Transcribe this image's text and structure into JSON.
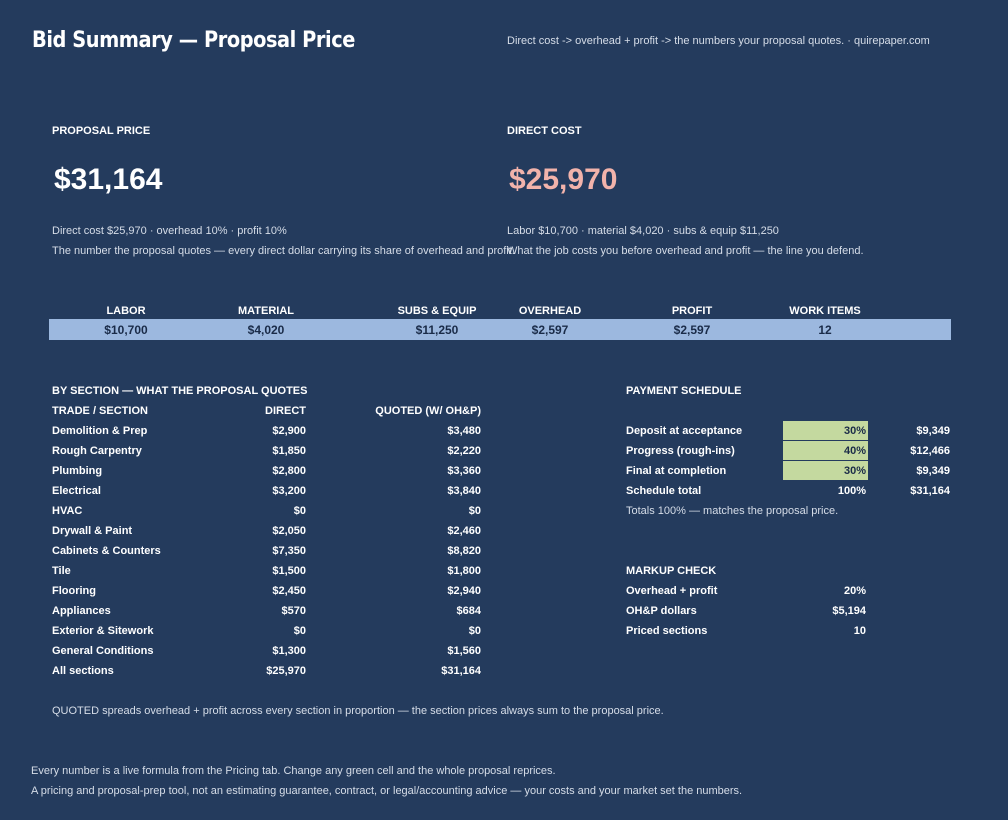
{
  "header": {
    "title": "Bid Summary — Proposal Price",
    "tagline": "Direct cost -> overhead + profit -> the numbers your proposal quotes.  ·  quirepaper.com"
  },
  "proposal": {
    "label": "PROPOSAL PRICE",
    "value": "$31,164",
    "detail": "Direct cost $25,970  ·  overhead 10%  ·  profit 10%",
    "desc": "The number the proposal quotes — every direct dollar carrying its share of overhead and profit."
  },
  "direct": {
    "label": "DIRECT COST",
    "value": "$25,970",
    "detail": "Labor $10,700  ·  material $4,020  ·  subs & equip $11,250",
    "desc": "What the job costs you before overhead and profit — the line you defend.",
    "color": "#f2b3ab"
  },
  "kpis": [
    {
      "label": "LABOR",
      "value": "$10,700"
    },
    {
      "label": "MATERIAL",
      "value": "$4,020"
    },
    {
      "label": "SUBS & EQUIP",
      "value": "$11,250"
    },
    {
      "label": "OVERHEAD",
      "value": "$2,597"
    },
    {
      "label": "PROFIT",
      "value": "$2,597"
    },
    {
      "label": "WORK ITEMS",
      "value": "12"
    }
  ],
  "sections": {
    "title": "BY SECTION — WHAT THE PROPOSAL QUOTES",
    "col_trade": "TRADE / SECTION",
    "col_direct": "DIRECT",
    "col_quoted": "QUOTED (W/ OH&P)",
    "rows": [
      {
        "name": "Demolition & Prep",
        "direct": "$2,900",
        "quoted": "$3,480"
      },
      {
        "name": "Rough Carpentry",
        "direct": "$1,850",
        "quoted": "$2,220"
      },
      {
        "name": "Plumbing",
        "direct": "$2,800",
        "quoted": "$3,360"
      },
      {
        "name": "Electrical",
        "direct": "$3,200",
        "quoted": "$3,840"
      },
      {
        "name": "HVAC",
        "direct": "$0",
        "quoted": "$0"
      },
      {
        "name": "Drywall & Paint",
        "direct": "$2,050",
        "quoted": "$2,460"
      },
      {
        "name": "Cabinets & Counters",
        "direct": "$7,350",
        "quoted": "$8,820"
      },
      {
        "name": "Tile",
        "direct": "$1,500",
        "quoted": "$1,800"
      },
      {
        "name": "Flooring",
        "direct": "$2,450",
        "quoted": "$2,940"
      },
      {
        "name": "Appliances",
        "direct": "$570",
        "quoted": "$684"
      },
      {
        "name": "Exterior & Sitework",
        "direct": "$0",
        "quoted": "$0"
      },
      {
        "name": "General Conditions",
        "direct": "$1,300",
        "quoted": "$1,560"
      },
      {
        "name": "All sections",
        "direct": "$25,970",
        "quoted": "$31,164"
      }
    ],
    "note": "QUOTED spreads overhead + profit across every section in proportion — the section prices always sum to the proposal price."
  },
  "payment": {
    "title": "PAYMENT SCHEDULE",
    "rows": [
      {
        "name": "Deposit at acceptance",
        "pct": "30%",
        "amount": "$9,349"
      },
      {
        "name": "Progress (rough-ins)",
        "pct": "40%",
        "amount": "$12,466"
      },
      {
        "name": "Final at completion",
        "pct": "30%",
        "amount": "$9,349"
      }
    ],
    "total": {
      "name": "Schedule total",
      "pct": "100%",
      "amount": "$31,164"
    },
    "note": "Totals 100% — matches the proposal price.",
    "input_color": "#c4d99f"
  },
  "markup": {
    "title": "MARKUP CHECK",
    "rows": [
      {
        "name": "Overhead + profit",
        "value": "20%"
      },
      {
        "name": "OH&P dollars",
        "value": "$5,194"
      },
      {
        "name": "Priced sections",
        "value": "10"
      }
    ]
  },
  "footer": {
    "line1": "Every number is a live formula from the Pricing tab. Change any green cell and the whole proposal reprices.",
    "line2": "A pricing and proposal-prep tool, not an estimating guarantee, contract, or legal/accounting advice — your costs and your market set the numbers."
  }
}
